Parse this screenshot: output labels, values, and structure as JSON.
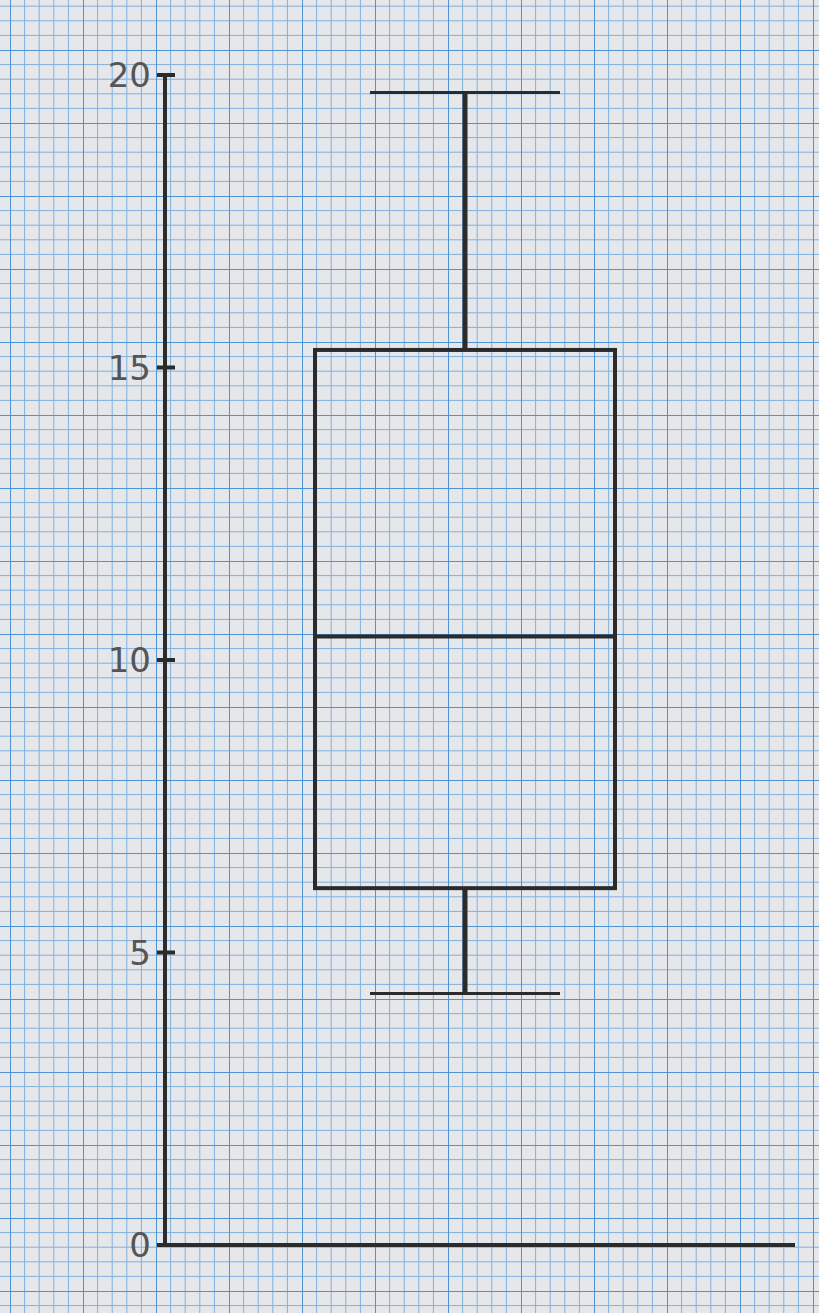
{
  "chart_data": {
    "type": "box",
    "boxes": [
      {
        "min": 4.3,
        "q1": 6.1,
        "median": 10.4,
        "q3": 15.3,
        "max": 19.7
      }
    ],
    "ylim": [
      0,
      20
    ],
    "yticks": [
      0,
      5,
      10,
      15,
      20
    ],
    "tick_labels": "y",
    "grid": false,
    "color": "#2b2b2b"
  }
}
